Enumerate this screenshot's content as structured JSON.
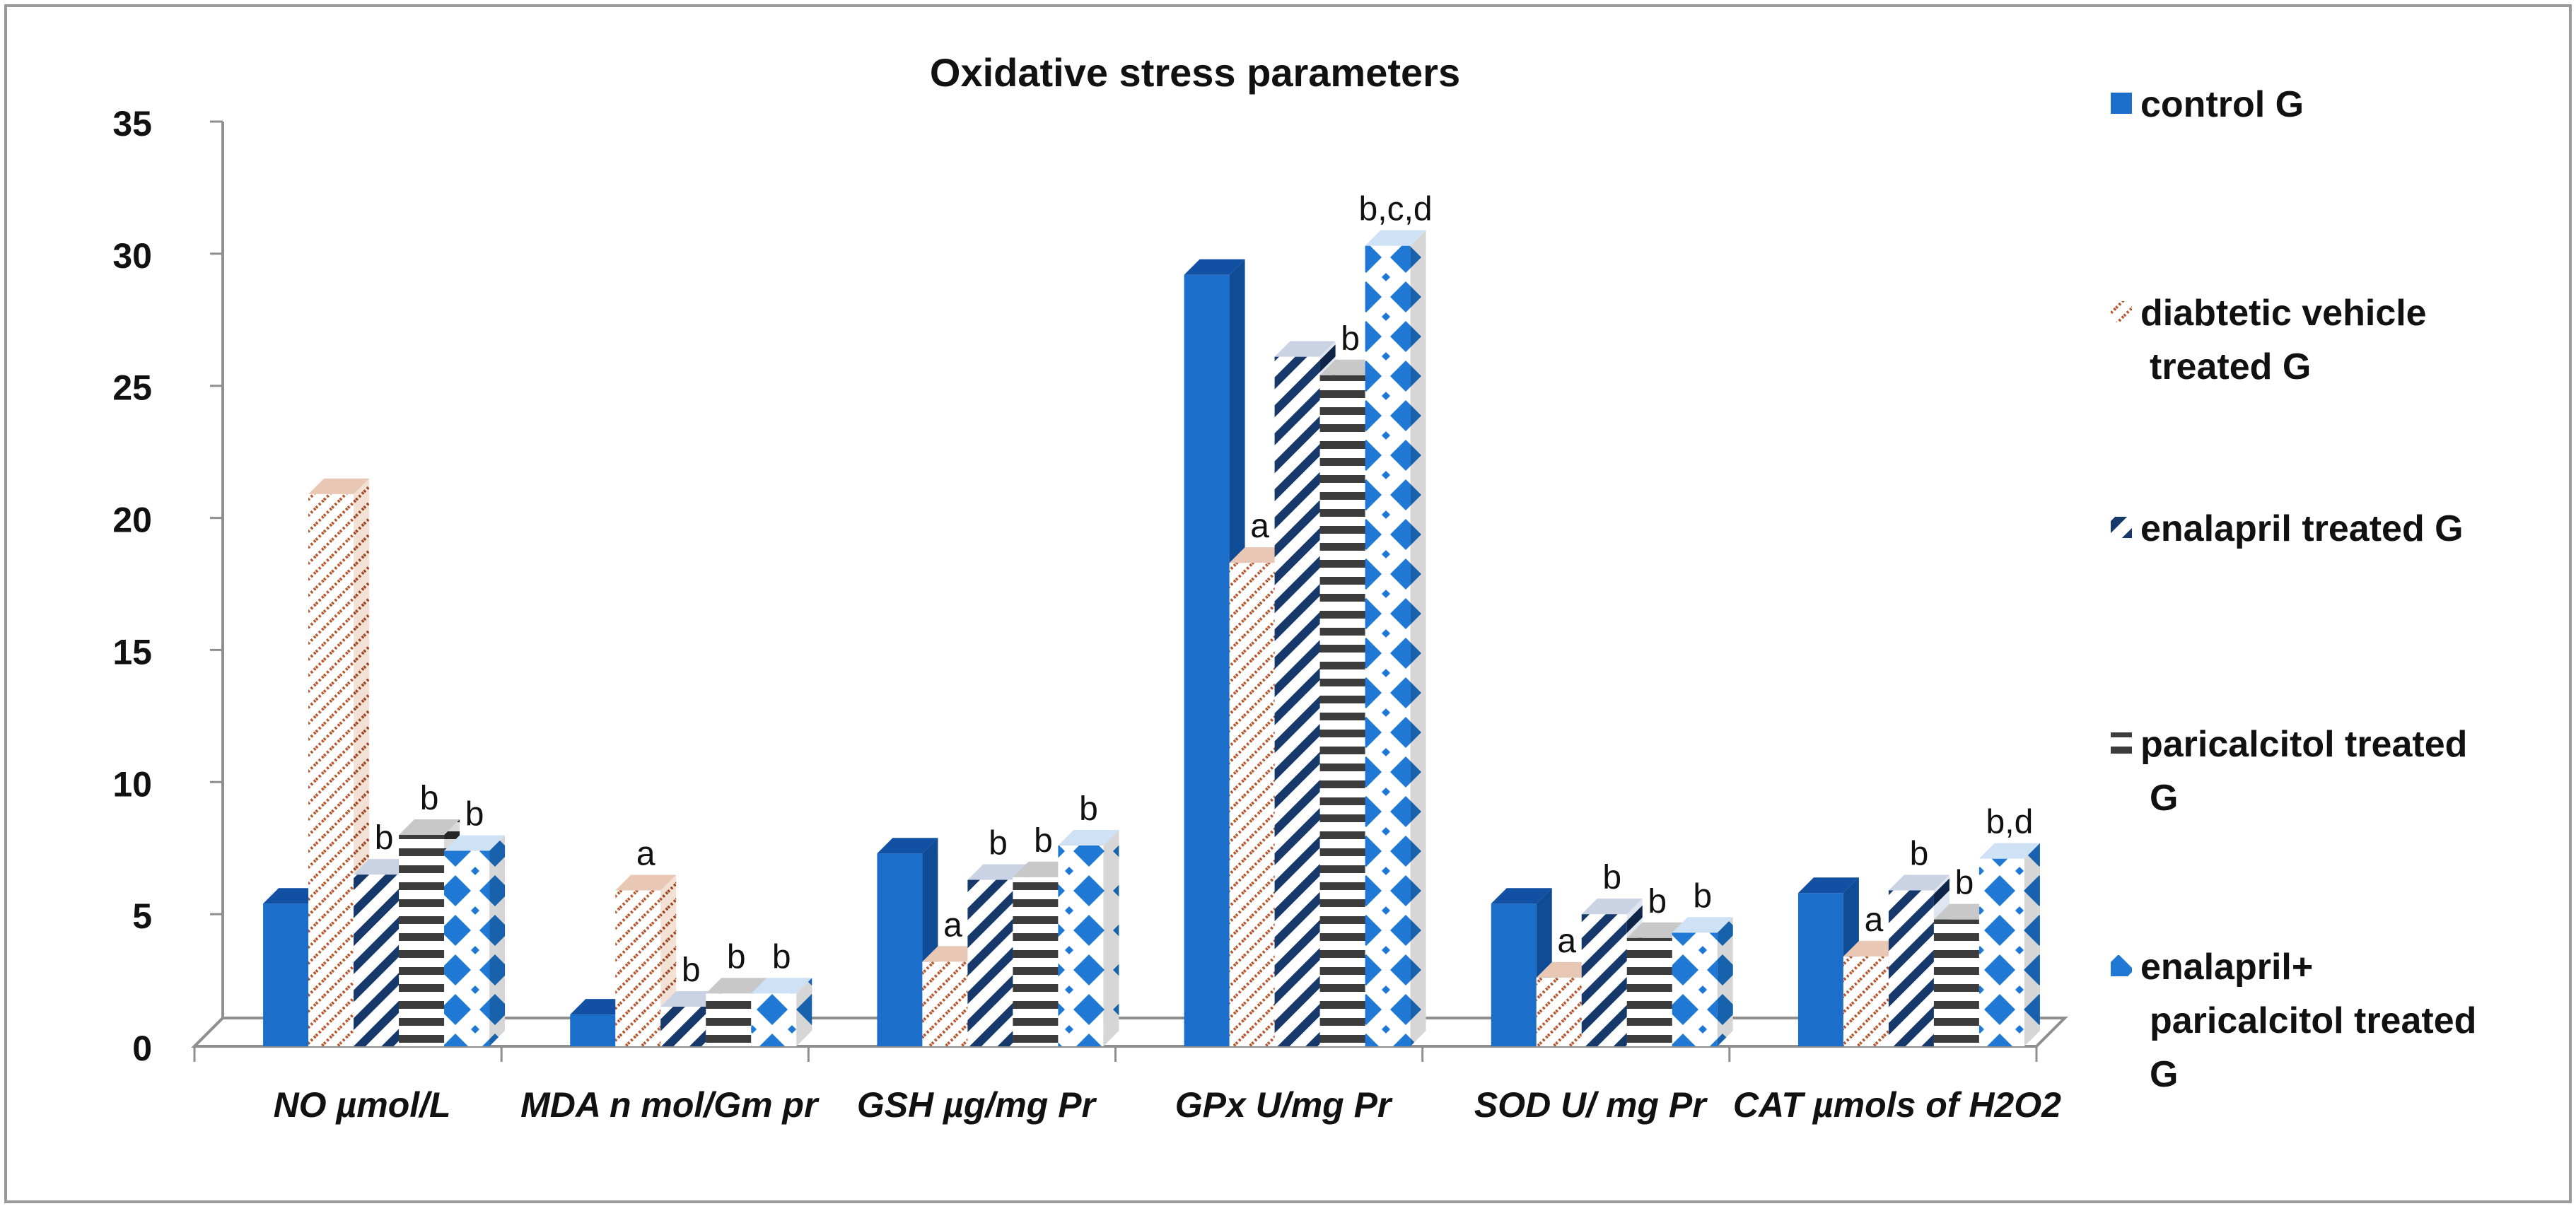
{
  "chart_data": {
    "type": "bar",
    "title": "Oxidative stress parameters",
    "xlabel": "",
    "ylabel": "",
    "ylim": [
      0,
      35
    ],
    "yticks": [
      0,
      5,
      10,
      15,
      20,
      25,
      30,
      35
    ],
    "grid": false,
    "legend_position": "right",
    "categories": [
      "NO µmol/L",
      "MDA n mol/Gm pr",
      "GSH  µg/mg Pr",
      "GPx U/mg Pr",
      "SOD U/ mg Pr",
      "CAT µmols of H2O2"
    ],
    "series": [
      {
        "name": "control G",
        "pattern": "solid",
        "values": [
          5.4,
          1.2,
          7.3,
          29.2,
          5.4,
          5.8
        ]
      },
      {
        "name": " diabtetic vehicle treated G",
        "pattern": "diagonal-dots",
        "values": [
          20.9,
          5.9,
          3.2,
          18.3,
          2.6,
          3.4
        ]
      },
      {
        "name": "enalapril treated G",
        "pattern": "diagonal-stripes",
        "values": [
          6.5,
          1.5,
          6.3,
          26.1,
          5.0,
          5.9
        ]
      },
      {
        "name": "paricalcitol treated G",
        "pattern": "horizontal-stripes",
        "values": [
          8.0,
          2.0,
          6.4,
          25.4,
          4.1,
          4.8
        ]
      },
      {
        "name": "enalapril+ paricalcitol treated G",
        "pattern": "diamonds",
        "values": [
          7.4,
          2.0,
          7.6,
          30.3,
          4.3,
          7.1
        ]
      }
    ],
    "annotations": [
      [
        "",
        "",
        "b",
        "b",
        "b"
      ],
      [
        "",
        "a",
        "b",
        "b",
        "b"
      ],
      [
        "",
        "a",
        "b",
        "b",
        "b"
      ],
      [
        "",
        "a",
        "",
        "b",
        "b,c,d"
      ],
      [
        "",
        "a",
        "b",
        "b",
        "b"
      ],
      [
        "",
        "a",
        "b",
        "b",
        "b,d"
      ]
    ],
    "colors": {
      "control": "#1b6fcb",
      "control_side": "#0f4c95",
      "control_top": "#1250a3",
      "diabetic": "#b5562e",
      "stripes": "#16386b",
      "horizontal": "#3c3c3c",
      "diamonds": "#1e78d4",
      "axis": "#8f8f8f",
      "frame": "#9a9a9a"
    }
  }
}
